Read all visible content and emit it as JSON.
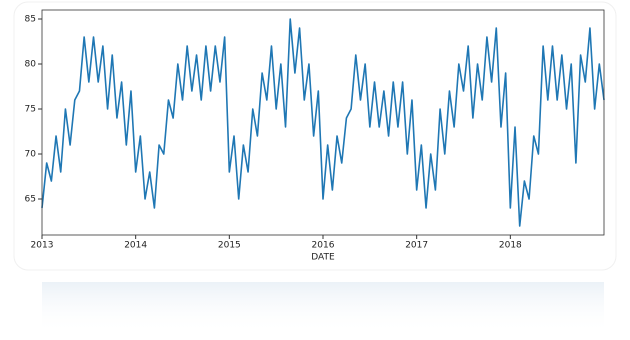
{
  "chart_data": {
    "type": "line",
    "x_label": "DATE",
    "x": [
      2013.0,
      2013.05,
      2013.1,
      2013.15,
      2013.2,
      2013.25,
      2013.3,
      2013.35,
      2013.4,
      2013.45,
      2013.5,
      2013.55,
      2013.6,
      2013.65,
      2013.7,
      2013.75,
      2013.8,
      2013.85,
      2013.9,
      2013.95,
      2014.0,
      2014.05,
      2014.1,
      2014.15,
      2014.2,
      2014.25,
      2014.3,
      2014.35,
      2014.4,
      2014.45,
      2014.5,
      2014.55,
      2014.6,
      2014.65,
      2014.7,
      2014.75,
      2014.8,
      2014.85,
      2014.9,
      2014.95,
      2015.0,
      2015.05,
      2015.1,
      2015.15,
      2015.2,
      2015.25,
      2015.3,
      2015.35,
      2015.4,
      2015.45,
      2015.5,
      2015.55,
      2015.6,
      2015.65,
      2015.7,
      2015.75,
      2015.8,
      2015.85,
      2015.9,
      2015.95,
      2016.0,
      2016.05,
      2016.1,
      2016.15,
      2016.2,
      2016.25,
      2016.3,
      2016.35,
      2016.4,
      2016.45,
      2016.5,
      2016.55,
      2016.6,
      2016.65,
      2016.7,
      2016.75,
      2016.8,
      2016.85,
      2016.9,
      2016.95,
      2017.0,
      2017.05,
      2017.1,
      2017.15,
      2017.2,
      2017.25,
      2017.3,
      2017.35,
      2017.4,
      2017.45,
      2017.5,
      2017.55,
      2017.6,
      2017.65,
      2017.7,
      2017.75,
      2017.8,
      2017.85,
      2017.9,
      2017.95,
      2018.0,
      2018.05,
      2018.1,
      2018.15,
      2018.2,
      2018.25,
      2018.3,
      2018.35,
      2018.4,
      2018.45,
      2018.5,
      2018.55,
      2018.6,
      2018.65,
      2018.7,
      2018.75,
      2018.8,
      2018.85,
      2018.9,
      2018.95,
      2019.0
    ],
    "series": [
      {
        "color": "#1f77b4",
        "values": [
          64,
          69,
          67,
          72,
          68,
          75,
          71,
          76,
          77,
          83,
          78,
          83,
          78,
          82,
          75,
          81,
          74,
          78,
          71,
          77,
          68,
          72,
          65,
          68,
          64,
          71,
          70,
          76,
          74,
          80,
          76,
          82,
          77,
          81,
          76,
          82,
          77,
          82,
          78,
          83,
          68,
          72,
          65,
          71,
          68,
          75,
          72,
          79,
          76,
          82,
          75,
          80,
          73,
          85,
          79,
          84,
          76,
          80,
          72,
          77,
          65,
          71,
          66,
          72,
          69,
          74,
          75,
          81,
          76,
          80,
          73,
          78,
          73,
          77,
          72,
          78,
          73,
          78,
          70,
          76,
          66,
          71,
          64,
          70,
          66,
          75,
          70,
          77,
          73,
          80,
          77,
          82,
          74,
          80,
          76,
          83,
          78,
          84,
          73,
          79,
          64,
          73,
          62,
          67,
          65,
          72,
          70,
          82,
          76,
          82,
          76,
          81,
          75,
          80,
          69,
          81,
          78,
          84,
          75,
          80,
          76
        ]
      }
    ],
    "xlim": [
      2013,
      2019
    ],
    "xticks": [
      2013,
      2014,
      2015,
      2016,
      2017,
      2018
    ],
    "ylim": [
      61,
      86
    ],
    "yticks": [
      65,
      70,
      75,
      80,
      85
    ],
    "grid": false
  }
}
